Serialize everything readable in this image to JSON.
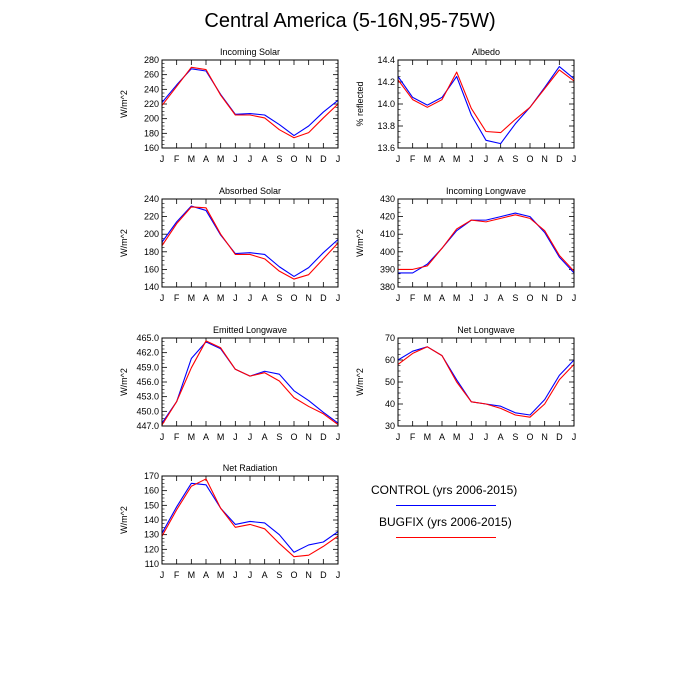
{
  "title": "Central America (5-16N,95-75W)",
  "legend": [
    {
      "label": "CONTROL (yrs 2006-2015)",
      "color": "#0000ff"
    },
    {
      "label": "BUGFIX (yrs 2006-2015)",
      "color": "#ff0000"
    }
  ],
  "chart_data": [
    {
      "type": "line",
      "title": "Incoming Solar",
      "ylabel": "W/m^2",
      "categories": [
        "J",
        "F",
        "M",
        "A",
        "M",
        "J",
        "J",
        "A",
        "S",
        "O",
        "N",
        "D",
        "J"
      ],
      "ylim": [
        160,
        280
      ],
      "yticks": [
        "160",
        "180",
        "200",
        "220",
        "240",
        "260",
        "280"
      ],
      "series": [
        {
          "name": "CONTROL (yrs 2006-2015)",
          "color": "#0000ff",
          "values": [
            222,
            246,
            268,
            265,
            233,
            206,
            207,
            205,
            192,
            177,
            190,
            209,
            225
          ]
        },
        {
          "name": "BUGFIX (yrs 2006-2015)",
          "color": "#ff0000",
          "values": [
            218,
            244,
            270,
            267,
            232,
            205,
            205,
            201,
            185,
            174,
            181,
            201,
            220
          ]
        }
      ]
    },
    {
      "type": "line",
      "title": "Albedo",
      "ylabel": "% reflected",
      "categories": [
        "J",
        "F",
        "M",
        "A",
        "M",
        "J",
        "J",
        "A",
        "S",
        "O",
        "N",
        "D",
        "J"
      ],
      "ylim": [
        13.6,
        14.4
      ],
      "yticks": [
        "13.6",
        "13.8",
        "14.0",
        "14.2",
        "14.4"
      ],
      "series": [
        {
          "name": "CONTROL (yrs 2006-2015)",
          "color": "#0000ff",
          "values": [
            14.25,
            14.06,
            13.99,
            14.06,
            14.25,
            13.9,
            13.67,
            13.64,
            13.82,
            13.97,
            14.15,
            14.34,
            14.23
          ]
        },
        {
          "name": "BUGFIX (yrs 2006-2015)",
          "color": "#ff0000",
          "values": [
            14.22,
            14.04,
            13.97,
            14.04,
            14.29,
            13.96,
            13.75,
            13.74,
            13.86,
            13.97,
            14.14,
            14.31,
            14.21
          ]
        }
      ]
    },
    {
      "type": "line",
      "title": "Absorbed Solar",
      "ylabel": "W/m^2",
      "categories": [
        "J",
        "F",
        "M",
        "A",
        "M",
        "J",
        "J",
        "A",
        "S",
        "O",
        "N",
        "D",
        "J"
      ],
      "ylim": [
        140,
        240
      ],
      "yticks": [
        "140",
        "160",
        "180",
        "200",
        "220",
        "240"
      ],
      "series": [
        {
          "name": "CONTROL (yrs 2006-2015)",
          "color": "#0000ff",
          "values": [
            191,
            214,
            232,
            227,
            199,
            178,
            179,
            177,
            163,
            152,
            162,
            179,
            194
          ]
        },
        {
          "name": "BUGFIX (yrs 2006-2015)",
          "color": "#ff0000",
          "values": [
            187,
            212,
            231,
            230,
            200,
            177,
            177,
            172,
            158,
            149,
            154,
            172,
            190
          ]
        }
      ]
    },
    {
      "type": "line",
      "title": "Incoming Longwave",
      "ylabel": "W/m^2",
      "categories": [
        "J",
        "F",
        "M",
        "A",
        "M",
        "J",
        "J",
        "A",
        "S",
        "O",
        "N",
        "D",
        "J"
      ],
      "ylim": [
        380,
        430
      ],
      "yticks": [
        "380",
        "390",
        "400",
        "410",
        "420",
        "430"
      ],
      "series": [
        {
          "name": "CONTROL (yrs 2006-2015)",
          "color": "#0000ff",
          "values": [
            388,
            388,
            393,
            402,
            412,
            418,
            418,
            420,
            422,
            420,
            411,
            397,
            388
          ]
        },
        {
          "name": "BUGFIX (yrs 2006-2015)",
          "color": "#ff0000",
          "values": [
            390,
            390,
            392,
            402,
            413,
            418,
            417,
            419,
            421,
            419,
            412,
            398,
            389
          ]
        }
      ]
    },
    {
      "type": "line",
      "title": "Emitted Longwave",
      "ylabel": "W/m^2",
      "categories": [
        "J",
        "F",
        "M",
        "A",
        "M",
        "J",
        "J",
        "A",
        "S",
        "O",
        "N",
        "D",
        "J"
      ],
      "ylim": [
        447.0,
        465.0
      ],
      "yticks": [
        "447.0",
        "450.0",
        "453.0",
        "456.0",
        "459.0",
        "462.0",
        "465.0"
      ],
      "series": [
        {
          "name": "CONTROL (yrs 2006-2015)",
          "color": "#0000ff",
          "values": [
            447.6,
            452.0,
            460.8,
            464.2,
            462.8,
            458.6,
            457.2,
            458.2,
            457.6,
            454.2,
            452.2,
            449.8,
            447.6
          ]
        },
        {
          "name": "BUGFIX (yrs 2006-2015)",
          "color": "#ff0000",
          "values": [
            447.2,
            452.0,
            458.9,
            464.4,
            463.0,
            458.6,
            457.2,
            457.9,
            456.2,
            452.8,
            451.0,
            449.5,
            447.3
          ]
        }
      ]
    },
    {
      "type": "line",
      "title": "Net Longwave",
      "ylabel": "W/m^2",
      "categories": [
        "J",
        "F",
        "M",
        "A",
        "M",
        "J",
        "J",
        "A",
        "S",
        "O",
        "N",
        "D",
        "J"
      ],
      "ylim": [
        30,
        70
      ],
      "yticks": [
        "30",
        "40",
        "50",
        "60",
        "70"
      ],
      "series": [
        {
          "name": "CONTROL (yrs 2006-2015)",
          "color": "#0000ff",
          "values": [
            60,
            64,
            66,
            62,
            51,
            41,
            40,
            39,
            36,
            35,
            42,
            53,
            60
          ]
        },
        {
          "name": "BUGFIX (yrs 2006-2015)",
          "color": "#ff0000",
          "values": [
            58,
            63,
            66,
            62,
            50,
            41,
            40,
            38,
            35,
            34,
            40,
            51,
            58
          ]
        }
      ]
    },
    {
      "type": "line",
      "title": "Net Radiation",
      "ylabel": "W/m^2",
      "categories": [
        "J",
        "F",
        "M",
        "A",
        "M",
        "J",
        "J",
        "A",
        "S",
        "O",
        "N",
        "D",
        "J"
      ],
      "ylim": [
        110,
        170
      ],
      "yticks": [
        "110",
        "120",
        "130",
        "140",
        "150",
        "160",
        "170"
      ],
      "series": [
        {
          "name": "CONTROL (yrs 2006-2015)",
          "color": "#0000ff",
          "values": [
            131,
            149,
            165,
            164,
            148,
            137,
            139,
            138,
            130,
            118,
            123,
            125,
            132
          ]
        },
        {
          "name": "BUGFIX (yrs 2006-2015)",
          "color": "#ff0000",
          "values": [
            129,
            147,
            163,
            168,
            148,
            135,
            137,
            134,
            124,
            115,
            116,
            122,
            129
          ]
        }
      ]
    }
  ]
}
